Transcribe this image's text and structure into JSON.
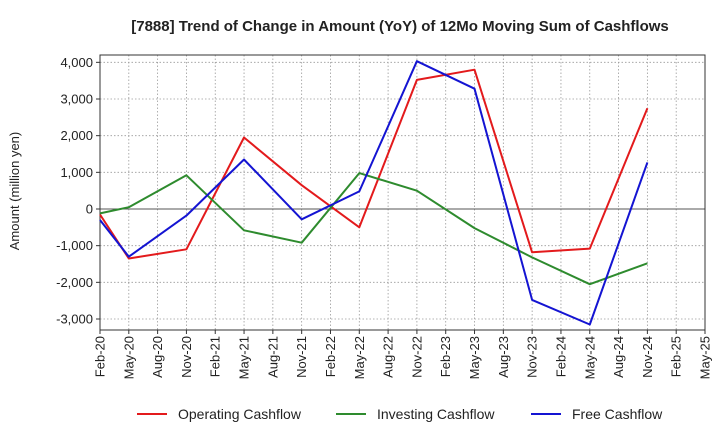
{
  "chart_data": {
    "type": "line",
    "title": "[7888]  Trend of Change in Amount (YoY) of 12Mo Moving Sum of Cashflows",
    "xlabel": "",
    "ylabel": "Amount (million yen)",
    "ylim": [
      -3300,
      4200
    ],
    "yticks": [
      4000,
      3000,
      2000,
      1000,
      0,
      -1000,
      -2000,
      -3000
    ],
    "ytick_labels": [
      "4,000",
      "3,000",
      "2,000",
      "1,000",
      "0",
      "-1,000",
      "-2,000",
      "-3,000"
    ],
    "categories": [
      "Feb-20",
      "May-20",
      "Aug-20",
      "Nov-20",
      "Feb-21",
      "May-21",
      "Aug-21",
      "Nov-21",
      "Feb-22",
      "May-22",
      "Aug-22",
      "Nov-22",
      "Feb-23",
      "May-23",
      "Aug-23",
      "Nov-23",
      "Feb-24",
      "May-24",
      "Aug-24",
      "Nov-24",
      "Feb-25",
      "May-25"
    ],
    "grid": true,
    "legend_position": "bottom",
    "series": [
      {
        "name": "Operating Cashflow",
        "color": "#e31a1c",
        "values": [
          -150,
          -1350,
          null,
          -1100,
          null,
          1950,
          null,
          650,
          null,
          -500,
          null,
          3520,
          null,
          3800,
          null,
          -1180,
          null,
          -1080,
          null,
          2750,
          null,
          null
        ]
      },
      {
        "name": "Investing Cashflow",
        "color": "#2e8b2e",
        "values": [
          -120,
          50,
          null,
          920,
          null,
          -580,
          null,
          -920,
          null,
          980,
          null,
          500,
          null,
          -520,
          null,
          -1320,
          null,
          -2050,
          null,
          -1480,
          null,
          null
        ]
      },
      {
        "name": "Free Cashflow",
        "color": "#1414d2",
        "values": [
          -300,
          -1300,
          null,
          -180,
          null,
          1350,
          null,
          -280,
          null,
          480,
          null,
          4030,
          null,
          3280,
          null,
          -2480,
          null,
          -3150,
          null,
          1270,
          null,
          null
        ]
      }
    ]
  }
}
